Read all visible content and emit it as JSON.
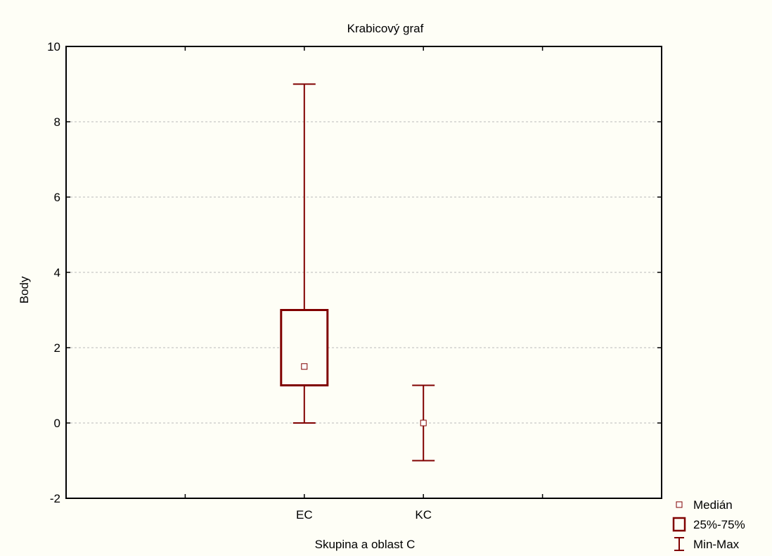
{
  "chart_data": {
    "type": "box",
    "title": "Krabicový graf",
    "xlabel": "Skupina a oblast C",
    "ylabel": "Body",
    "ylim": [
      -2,
      10
    ],
    "yticks": [
      -2,
      0,
      2,
      4,
      6,
      8,
      10
    ],
    "grid": "horizontal dashed",
    "legend_position": "bottom-right",
    "categories": [
      "EC",
      "KC"
    ],
    "series": [
      {
        "category": "EC",
        "min": 0,
        "q1": 1,
        "median": 1.5,
        "q3": 3,
        "max": 9
      },
      {
        "category": "KC",
        "min": -1,
        "q1": 0,
        "median": 0,
        "q3": 0,
        "max": 1
      }
    ],
    "legend": [
      {
        "symbol": "median-square",
        "label": "Medián"
      },
      {
        "symbol": "box",
        "label": "25%-75%"
      },
      {
        "symbol": "whisker",
        "label": "Min-Max"
      }
    ],
    "colors": {
      "series": "#800000",
      "background": "#FEFEF6",
      "grid": "#BBBBBB"
    }
  }
}
